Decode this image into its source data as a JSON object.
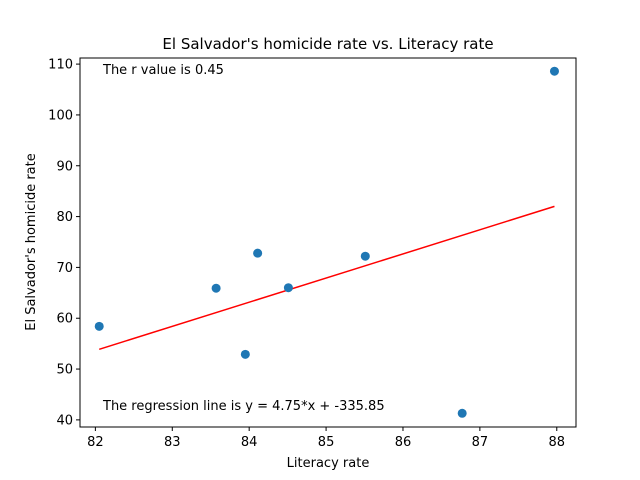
{
  "chart_data": {
    "type": "scatter",
    "title": "El Salvador's homicide rate vs. Literacy rate",
    "xlabel": "Literacy rate",
    "ylabel": "El Salvador's homicide rate",
    "xlim": [
      81.8,
      88.25
    ],
    "ylim": [
      38.6,
      111.2
    ],
    "xticks": [
      82,
      83,
      84,
      85,
      86,
      87,
      88
    ],
    "yticks": [
      40,
      50,
      60,
      70,
      80,
      90,
      100,
      110
    ],
    "grid": false,
    "points": [
      {
        "x": 82.05,
        "y": 58.4
      },
      {
        "x": 83.57,
        "y": 65.9
      },
      {
        "x": 83.95,
        "y": 52.9
      },
      {
        "x": 84.11,
        "y": 72.8
      },
      {
        "x": 84.51,
        "y": 66.0
      },
      {
        "x": 85.51,
        "y": 72.2
      },
      {
        "x": 86.77,
        "y": 41.3
      },
      {
        "x": 87.97,
        "y": 108.6
      }
    ],
    "regression": {
      "slope": 4.75,
      "intercept": -335.85,
      "x_start": 82.05,
      "x_end": 87.97
    },
    "annotations": {
      "r_value": "The r value is 0.45",
      "regression_line": "The regression line is y = 4.75*x + -335.85"
    },
    "colors": {
      "points": "#1f77b4",
      "line": "#ff0000",
      "axes": "#000000"
    }
  }
}
